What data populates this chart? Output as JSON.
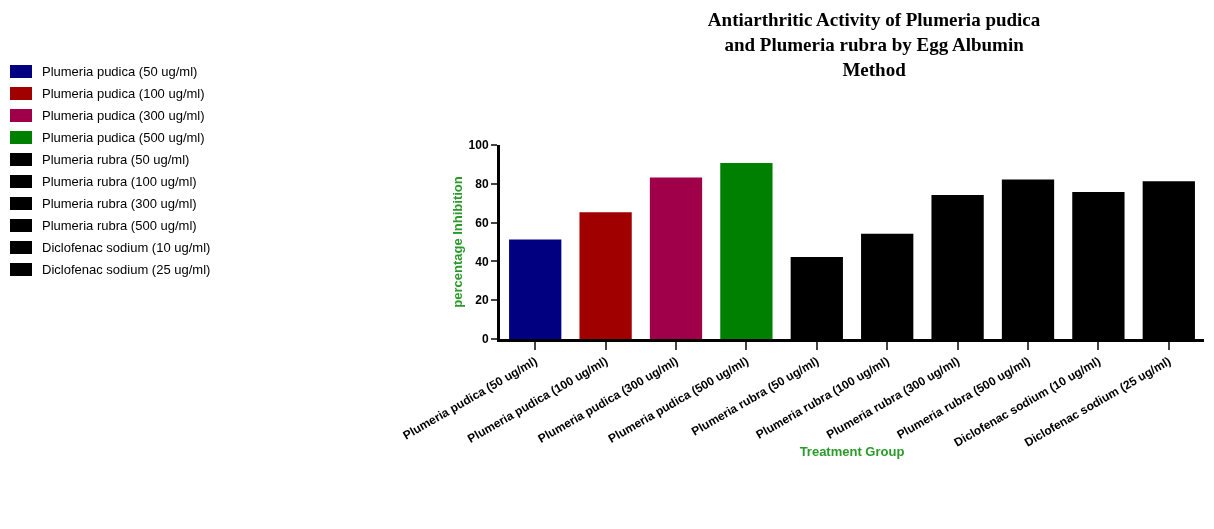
{
  "chart_data": {
    "type": "bar",
    "title": "Antiarthritic Activity of Plumeria pudica\nand Plumeria rubra by Egg Albumin\nMethod",
    "xlabel": "Treatment Group",
    "ylabel": "percentage Inhibition",
    "categories": [
      "Plumeria pudica (50 ug/ml)",
      "Plumeria pudica (100 ug/ml)",
      "Plumeria pudica (300 ug/ml)",
      "Plumeria pudica (500 ug/ml)",
      "Plumeria rubra (50 ug/ml)",
      "Plumeria rubra (100 ug/ml)",
      "Plumeria rubra (300 ug/ml)",
      "Plumeria rubra (500 ug/ml)",
      "Diclofenac sodium (10 ug/ml)",
      "Diclofenac sodium (25 ug/ml)"
    ],
    "series": [
      {
        "name": "Plumeria pudica (50 ug/ml)",
        "color": "#000080",
        "values": [
          50.5,
          null,
          null,
          null,
          null,
          null,
          null,
          null,
          null,
          null
        ]
      },
      {
        "name": "Plumeria pudica (100 ug/ml)",
        "color": "#a00000",
        "values": [
          null,
          64.5,
          null,
          null,
          null,
          null,
          null,
          null,
          null,
          null
        ]
      },
      {
        "name": "Plumeria pudica (300 ug/ml)",
        "color": "#a0004a",
        "values": [
          null,
          null,
          82.5,
          null,
          null,
          null,
          null,
          null,
          null,
          null
        ]
      },
      {
        "name": "Plumeria pudica (500 ug/ml)",
        "color": "#008000",
        "values": [
          null,
          null,
          null,
          90,
          null,
          null,
          null,
          null,
          null,
          null
        ]
      },
      {
        "name": "Plumeria rubra (50 ug/ml)",
        "color": "#000000",
        "values": [
          null,
          null,
          null,
          null,
          41.5,
          null,
          null,
          null,
          null,
          null
        ]
      },
      {
        "name": "Plumeria rubra (100 ug/ml)",
        "color": "#000000",
        "values": [
          null,
          null,
          null,
          null,
          null,
          53.5,
          null,
          null,
          null,
          null
        ]
      },
      {
        "name": "Plumeria rubra (300 ug/ml)",
        "color": "#000000",
        "values": [
          null,
          null,
          null,
          null,
          null,
          null,
          73.5,
          null,
          null,
          null
        ]
      },
      {
        "name": "Plumeria rubra (500 ug/ml)",
        "color": "#000000",
        "values": [
          null,
          null,
          null,
          null,
          null,
          null,
          null,
          81.5,
          null,
          null
        ]
      },
      {
        "name": "Diclofenac sodium (10 ug/ml)",
        "color": "#000000",
        "values": [
          null,
          null,
          null,
          null,
          null,
          null,
          null,
          null,
          75,
          null
        ]
      },
      {
        "name": "Diclofenac sodium (25 ug/ml)",
        "color": "#000000",
        "values": [
          null,
          null,
          null,
          null,
          null,
          null,
          null,
          null,
          null,
          80.5
        ]
      }
    ],
    "ylim": [
      0,
      100
    ],
    "yticks": [
      0,
      20,
      40,
      60,
      80,
      100
    ],
    "grid": false,
    "legend": "left"
  }
}
